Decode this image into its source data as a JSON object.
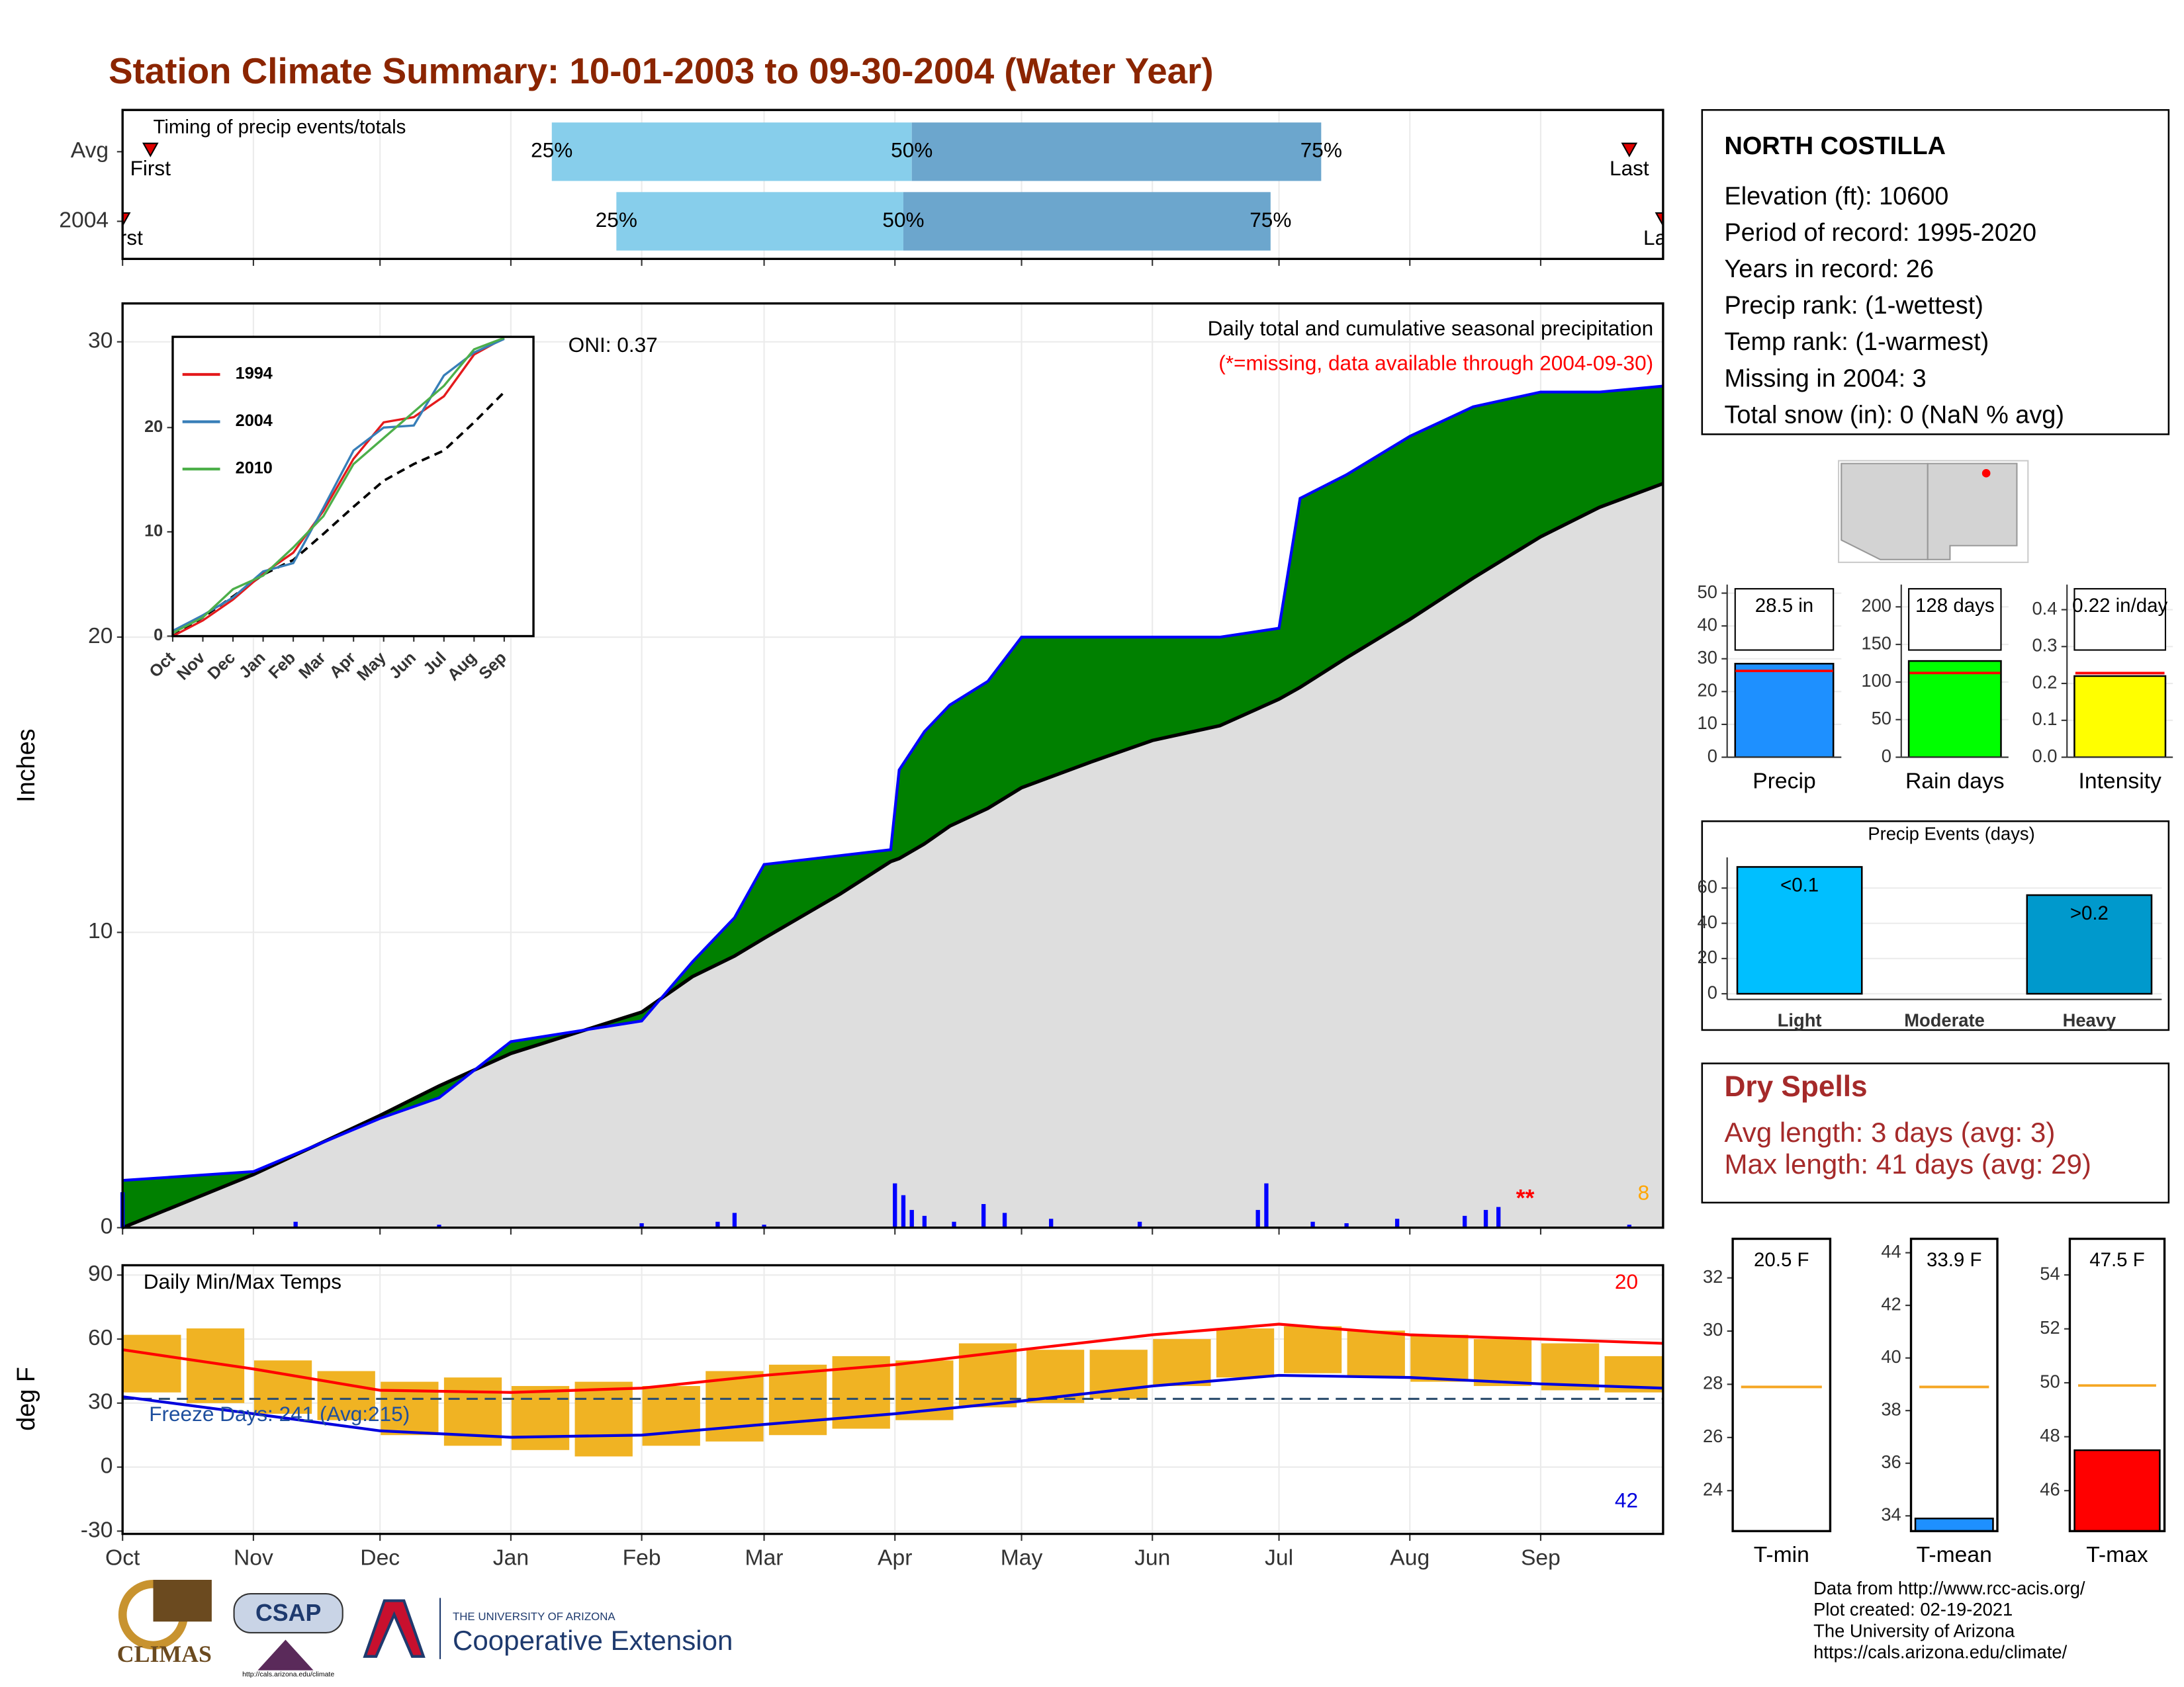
{
  "header": {
    "title": "Station Climate Summary: 10-01-2003 to 09-30-2004 (Water Year)"
  },
  "station": {
    "name": "NORTH COSTILLA",
    "lines": [
      "Elevation (ft): 10600",
      "Period of record: 1995-2020",
      "Years in record: 26",
      "Precip rank:  (1-wettest)",
      "Temp rank:  (1-warmest)",
      "Missing in 2004: 3",
      "Total snow (in): 0 (NaN % avg)"
    ]
  },
  "dry_spells": {
    "title": "Dry Spells",
    "lines": [
      "Avg length: 3 days (avg: 3)",
      "Max length: 41 days (avg: 29)"
    ]
  },
  "footer": {
    "lines": [
      "Data from http://www.rcc-acis.org/",
      "Plot created: 02-19-2021",
      "The University of Arizona",
      "https://cals.arizona.edu/climate/"
    ]
  },
  "logos": {
    "climas": "CLIMAS",
    "csap": "CSAP",
    "csap_url": "http://cals.arizona.edu/climate",
    "university": "THE UNIVERSITY OF ARIZONA",
    "extension": "Cooperative Extension"
  },
  "chart_data": [
    {
      "type": "timing",
      "title": "Timing of precip events/totals",
      "xlim": [
        0,
        365
      ],
      "xticks": [
        0,
        31,
        61,
        92,
        123,
        152,
        183,
        213,
        244,
        274,
        305,
        336
      ],
      "rows": [
        {
          "name": "Avg",
          "first": 6.6,
          "p25": 101.7,
          "p50": 187,
          "p75": 284,
          "last": 357
        },
        {
          "name": "2004",
          "first": 0,
          "p25": 117,
          "p50": 185,
          "p75": 272,
          "last": 365
        }
      ],
      "labels": {
        "first": "First",
        "p25": "25%",
        "p50": "50%",
        "p75": "75%",
        "last": "Last"
      },
      "colors": {
        "early": "#87ceeb",
        "late": "#6ca6cd",
        "marker": "#e00000"
      }
    },
    {
      "type": "cumulative",
      "title": "Daily total and cumulative seasonal precipitation",
      "subtitle": "(*=missing, data available through 2004-09-30)",
      "annotation": "ONI: 0.37",
      "missing_marker": "**",
      "count_label": "8",
      "ylabel": "Inches",
      "xlim": [
        0,
        365
      ],
      "ylim": [
        0,
        31.3
      ],
      "yticks": [
        0,
        10,
        20,
        30
      ],
      "xticks": [
        0,
        31,
        61,
        92,
        123,
        152,
        183,
        213,
        244,
        274,
        305,
        336
      ],
      "grid": true,
      "x": [
        0,
        31,
        61,
        75,
        92,
        123,
        135,
        145,
        152,
        170,
        182,
        184,
        190,
        196,
        205,
        213,
        230,
        244,
        260,
        274,
        279,
        290,
        305,
        320,
        336,
        350,
        365
      ],
      "series": [
        {
          "color": "#0000ff",
          "fill": "#008000",
          "values": [
            1.6,
            1.9,
            3.7,
            4.4,
            6.3,
            7.0,
            9.0,
            10.5,
            12.3,
            12.6,
            12.8,
            15.5,
            16.8,
            17.7,
            18.5,
            20.0,
            20.0,
            20.0,
            20.0,
            20.3,
            24.7,
            25.5,
            26.8,
            27.8,
            28.3,
            28.3,
            28.5
          ]
        },
        {
          "color": "#000000",
          "fill": "#dedede",
          "values": [
            0,
            1.8,
            3.8,
            4.8,
            5.9,
            7.3,
            8.5,
            9.2,
            9.8,
            11.3,
            12.4,
            12.5,
            13.0,
            13.6,
            14.2,
            14.9,
            15.8,
            16.5,
            17.0,
            17.9,
            18.3,
            19.3,
            20.6,
            22.0,
            23.4,
            24.4,
            25.2
          ]
        }
      ],
      "daily": {
        "color": "#0000ff",
        "x": [
          0,
          41,
          75,
          123,
          141,
          145,
          152,
          183,
          185,
          187,
          190,
          197,
          204,
          209,
          220,
          241,
          269,
          271,
          282,
          290,
          302,
          318,
          323,
          326,
          357
        ],
        "values": [
          1.2,
          0.2,
          0.1,
          0.15,
          0.2,
          0.5,
          0.1,
          1.5,
          1.1,
          0.6,
          0.4,
          0.2,
          0.8,
          0.5,
          0.3,
          0.2,
          0.6,
          1.5,
          0.2,
          0.15,
          0.3,
          0.4,
          0.6,
          0.7,
          0.1
        ]
      }
    },
    {
      "type": "line",
      "categories": [
        "Oct",
        "Nov",
        "Dec",
        "Jan",
        "Feb",
        "Mar",
        "Apr",
        "May",
        "Jun",
        "Jul",
        "Aug",
        "Sep"
      ],
      "ylim": [
        0,
        28.7
      ],
      "yticks": [
        0,
        10,
        20
      ],
      "series": [
        {
          "name": "1994",
          "color": "#e41a1c",
          "values": [
            0,
            1.5,
            3.5,
            6.0,
            8.0,
            12.0,
            17.0,
            20.5,
            21.0,
            23.0,
            27.0,
            28.6
          ]
        },
        {
          "name": "2004",
          "color": "#377eb8",
          "values": [
            0.5,
            2.0,
            3.7,
            6.2,
            7.0,
            12.3,
            17.8,
            20.0,
            20.2,
            25.0,
            27.2,
            28.5
          ]
        },
        {
          "name": "2010",
          "color": "#4daf4a",
          "values": [
            0.3,
            1.8,
            4.5,
            5.8,
            8.5,
            11.5,
            16.5,
            19.0,
            21.5,
            24.0,
            27.5,
            28.6
          ]
        }
      ],
      "average": {
        "color": "#000000",
        "values": [
          0,
          1.8,
          3.8,
          5.9,
          7.3,
          9.8,
          12.4,
          14.9,
          16.5,
          17.8,
          20.5,
          23.4
        ]
      }
    },
    {
      "type": "temperature",
      "title": "Daily Min/Max Temps",
      "annotation": "Freeze Days: 241 (Avg:215)",
      "max_label": "20",
      "min_label": "42",
      "ylabel": "deg F",
      "xlim": [
        0,
        365
      ],
      "ylim": [
        -31.3,
        94.6
      ],
      "yticks": [
        -30,
        0,
        30,
        60,
        90
      ],
      "freeze_line": 32,
      "xticks": [
        {
          "value": 0,
          "label": "Oct"
        },
        {
          "value": 31,
          "label": "Nov"
        },
        {
          "value": 61,
          "label": "Dec"
        },
        {
          "value": 92,
          "label": "Jan"
        },
        {
          "value": 123,
          "label": "Feb"
        },
        {
          "value": 152,
          "label": "Mar"
        },
        {
          "value": 183,
          "label": "Apr"
        },
        {
          "value": 213,
          "label": "May"
        },
        {
          "value": 244,
          "label": "Jun"
        },
        {
          "value": 274,
          "label": "Jul"
        },
        {
          "value": 305,
          "label": "Aug"
        },
        {
          "value": 336,
          "label": "Sep"
        }
      ],
      "x": [
        0,
        31,
        61,
        92,
        123,
        152,
        183,
        213,
        244,
        274,
        305,
        336,
        365
      ],
      "series": [
        {
          "color": "#ff0000",
          "values": [
            55,
            46,
            36,
            35,
            37,
            43,
            48,
            55,
            62,
            67,
            62,
            60,
            58
          ]
        },
        {
          "color": "#0000dd",
          "values": [
            33,
            25,
            17,
            14,
            15,
            20,
            25,
            31,
            38,
            43,
            42,
            39,
            37
          ]
        }
      ],
      "ranges": {
        "color": "#f0b323",
        "x": [
          7,
          22,
          38,
          53,
          68,
          83,
          99,
          114,
          130,
          145,
          160,
          175,
          190,
          205,
          221,
          236,
          251,
          266,
          282,
          297,
          312,
          327,
          343,
          358
        ],
        "low": [
          35,
          30,
          25,
          22,
          15,
          10,
          8,
          5,
          10,
          12,
          15,
          18,
          22,
          28,
          30,
          32,
          38,
          42,
          44,
          42,
          40,
          38,
          36,
          35
        ],
        "high": [
          62,
          65,
          50,
          45,
          40,
          42,
          38,
          40,
          38,
          45,
          48,
          52,
          50,
          58,
          55,
          55,
          60,
          65,
          66,
          64,
          62,
          60,
          58,
          52
        ]
      }
    },
    {
      "type": "bar",
      "categories": [
        "Precip"
      ],
      "values": [
        28.5
      ],
      "value_labels": [
        "28.5 in"
      ],
      "color": "#1e90ff",
      "average": 26.3,
      "average_color": "#ff0000",
      "ylim": [
        0,
        52.6
      ],
      "yticks": [
        0,
        10,
        20,
        30,
        40,
        50
      ]
    },
    {
      "type": "bar",
      "categories": [
        "Rain days"
      ],
      "values": [
        128
      ],
      "value_labels": [
        "128 days"
      ],
      "color": "#00ff00",
      "average": 112,
      "average_color": "#ff0000",
      "ylim": [
        0,
        229.6
      ],
      "yticks": [
        0,
        50,
        100,
        150,
        200
      ]
    },
    {
      "type": "bar",
      "categories": [
        "Intensity"
      ],
      "values": [
        0.22
      ],
      "value_labels": [
        "0.22 in/day"
      ],
      "color": "#ffff00",
      "average": 0.228,
      "average_color": "#ff0000",
      "ylim": [
        0,
        0.468
      ],
      "yticks": [
        {
          "value": 0,
          "label": "0.0"
        },
        0.1,
        0.2,
        0.3,
        0.4
      ]
    },
    {
      "type": "bar",
      "title": "Precip Events (days)",
      "categories": [
        "Light",
        "Moderate",
        "Heavy"
      ],
      "values": [
        72,
        0,
        56
      ],
      "bar_labels": [
        "<0.1",
        null,
        ">0.2"
      ],
      "colors": [
        "#00bfff",
        "#00bfff",
        "#0099cc"
      ],
      "grid": true,
      "ylim": [
        -3.2,
        77.4
      ],
      "yticks": [
        0,
        20,
        40,
        60
      ]
    },
    {
      "type": "bar",
      "categories": [
        "T-min"
      ],
      "values": [
        20.5
      ],
      "value_labels": [
        "20.5 F"
      ],
      "color": "#1e90ff",
      "average": 27.9,
      "average_color": "#f5a623",
      "ylim": [
        22.48,
        33.47
      ],
      "yticks": [
        24,
        26,
        28,
        30,
        32
      ]
    },
    {
      "type": "bar",
      "categories": [
        "T-mean"
      ],
      "values": [
        33.9
      ],
      "value_labels": [
        "33.9 F"
      ],
      "color": "#1e90ff",
      "average": 38.9,
      "average_color": "#f5a623",
      "ylim": [
        33.42,
        44.53
      ],
      "yticks": [
        34,
        36,
        38,
        40,
        42,
        44
      ]
    },
    {
      "type": "bar",
      "categories": [
        "T-max"
      ],
      "values": [
        47.5
      ],
      "value_labels": [
        "47.5 F"
      ],
      "color": "#ff0000",
      "average": 49.9,
      "average_color": "#f5a623",
      "ylim": [
        44.5,
        55.34
      ],
      "yticks": [
        46,
        48,
        50,
        52,
        54
      ]
    }
  ]
}
